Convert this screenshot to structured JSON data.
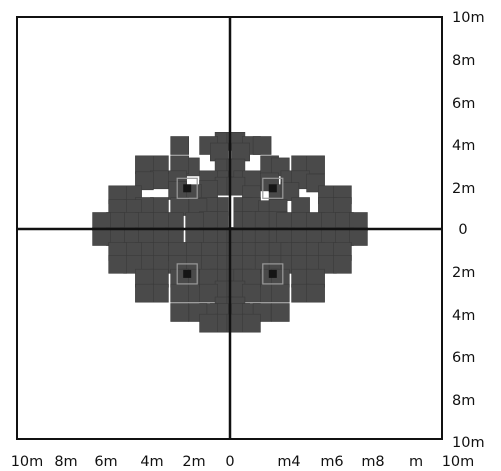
{
  "colors": {
    "background": "#ffffff",
    "frame": "#111111",
    "axis": "#111111",
    "square_fill": "#4a4a4a",
    "square_stroke": "#3a3a3a",
    "marker_fill": "#151515",
    "marker_outline": "#9a9a9a"
  },
  "x_ticks": [
    "10m",
    "8m",
    "6m",
    "4m",
    "2m",
    "0",
    "m4",
    "m6",
    "m8",
    "m",
    "10m"
  ],
  "y_ticks": [
    "10m",
    "8m",
    "6m",
    "4m",
    "2m",
    "0",
    "2m",
    "4m",
    "6m",
    "8m",
    "10m"
  ],
  "squares": [
    [
      -0.55,
      8.2
    ],
    [
      0.55,
      8.2
    ],
    [
      -2.0,
      7.8
    ],
    [
      -4.7,
      7.8
    ],
    [
      2.0,
      7.8
    ],
    [
      3.0,
      7.8
    ],
    [
      -1.0,
      7.2
    ],
    [
      1.0,
      7.2
    ],
    [
      -3.7,
      5.8
    ],
    [
      -4.7,
      6.0
    ],
    [
      3.7,
      6.0
    ],
    [
      4.7,
      5.8
    ],
    [
      -6.6,
      6.0
    ],
    [
      -8.0,
      6.0
    ],
    [
      6.6,
      6.0
    ],
    [
      8.0,
      6.0
    ],
    [
      -0.55,
      5.7
    ],
    [
      0.55,
      5.7
    ],
    [
      -1.0,
      4.6
    ],
    [
      -2.0,
      4.6
    ],
    [
      1.2,
      4.6
    ],
    [
      2.0,
      4.6
    ],
    [
      -4.9,
      4.6
    ],
    [
      -6.6,
      4.6
    ],
    [
      -8.0,
      4.5
    ],
    [
      3.7,
      4.4
    ],
    [
      5.6,
      4.6
    ],
    [
      6.6,
      4.6
    ],
    [
      8.0,
      4.3
    ],
    [
      -0.55,
      4.0
    ],
    [
      0.55,
      4.0
    ],
    [
      -2.0,
      3.7
    ],
    [
      -3.5,
      3.3
    ],
    [
      -4.9,
      3.6
    ],
    [
      -9.1,
      3.2
    ],
    [
      -10.5,
      3.2
    ],
    [
      2.0,
      3.2
    ],
    [
      4.5,
      3.3
    ],
    [
      5.6,
      3.5
    ],
    [
      9.1,
      3.2
    ],
    [
      10.5,
      3.2
    ],
    [
      -1.0,
      2.1
    ],
    [
      -2.0,
      2.1
    ],
    [
      -3.0,
      2.0
    ],
    [
      -4.7,
      2.1
    ],
    [
      -6.6,
      2.1
    ],
    [
      -8.0,
      2.1
    ],
    [
      1.2,
      2.1
    ],
    [
      2.0,
      2.1
    ],
    [
      3.5,
      1.8
    ],
    [
      4.5,
      1.9
    ],
    [
      6.6,
      2.1
    ],
    [
      9.1,
      2.1
    ],
    [
      10.5,
      2.1
    ],
    [
      -9.1,
      1.9
    ],
    [
      -10.5,
      1.9
    ],
    [
      -1.0,
      0.8
    ],
    [
      -2.0,
      0.8
    ],
    [
      -3.3,
      0.7
    ],
    [
      -5.2,
      0.7
    ],
    [
      -6.6,
      0.7
    ],
    [
      -8.0,
      0.7
    ],
    [
      -9.4,
      0.7
    ],
    [
      -10.7,
      0.7
    ],
    [
      -12.0,
      0.7
    ],
    [
      1.2,
      0.8
    ],
    [
      2.0,
      0.8
    ],
    [
      3.2,
      0.8
    ],
    [
      4.5,
      0.8
    ],
    [
      5.2,
      0.7
    ],
    [
      6.6,
      0.7
    ],
    [
      8.0,
      0.7
    ],
    [
      9.4,
      0.7
    ],
    [
      10.7,
      0.7
    ],
    [
      12.0,
      0.7
    ],
    [
      -0.55,
      -0.7
    ],
    [
      0.55,
      -0.7
    ],
    [
      -2.0,
      -0.7
    ],
    [
      -3.3,
      -0.7
    ],
    [
      -5.2,
      -0.7
    ],
    [
      -6.6,
      -0.7
    ],
    [
      -8.0,
      -0.7
    ],
    [
      -9.4,
      -0.7
    ],
    [
      -10.7,
      -0.7
    ],
    [
      -12.0,
      -0.7
    ],
    [
      2.0,
      -0.7
    ],
    [
      3.2,
      -0.7
    ],
    [
      4.5,
      -0.7
    ],
    [
      5.2,
      -0.7
    ],
    [
      6.6,
      -0.7
    ],
    [
      8.0,
      -0.7
    ],
    [
      9.4,
      -0.7
    ],
    [
      10.7,
      -0.7
    ],
    [
      12.0,
      -0.7
    ],
    [
      -0.55,
      -2.1
    ],
    [
      0.55,
      -2.1
    ],
    [
      -2.0,
      -2.1
    ],
    [
      -3.5,
      -2.1
    ],
    [
      -4.9,
      -2.1
    ],
    [
      -6.6,
      -2.1
    ],
    [
      -8.0,
      -2.1
    ],
    [
      -9.1,
      -2.1
    ],
    [
      -10.5,
      -2.1
    ],
    [
      2.0,
      -2.1
    ],
    [
      3.2,
      -2.1
    ],
    [
      4.5,
      -2.1
    ],
    [
      5.6,
      -2.1
    ],
    [
      6.6,
      -2.1
    ],
    [
      8.0,
      -2.1
    ],
    [
      9.1,
      -2.1
    ],
    [
      10.5,
      -2.1
    ],
    [
      -0.55,
      -3.3
    ],
    [
      0.55,
      -3.3
    ],
    [
      -2.0,
      -3.3
    ],
    [
      -3.5,
      -3.3
    ],
    [
      -4.9,
      -3.3
    ],
    [
      -6.6,
      -3.3
    ],
    [
      -8.0,
      -3.3
    ],
    [
      -9.1,
      -3.3
    ],
    [
      -10.5,
      -3.3
    ],
    [
      2.0,
      -3.3
    ],
    [
      3.2,
      -3.3
    ],
    [
      4.5,
      -3.3
    ],
    [
      5.6,
      -3.3
    ],
    [
      6.6,
      -3.3
    ],
    [
      8.0,
      -3.3
    ],
    [
      9.1,
      -3.3
    ],
    [
      10.5,
      -3.3
    ],
    [
      -1.0,
      -4.6
    ],
    [
      -2.0,
      -4.6
    ],
    [
      -3.7,
      -4.6
    ],
    [
      -4.7,
      -4.6
    ],
    [
      -6.6,
      -4.6
    ],
    [
      -8.0,
      -4.6
    ],
    [
      0.55,
      -4.6
    ],
    [
      1.2,
      -4.6
    ],
    [
      2.0,
      -4.6
    ],
    [
      3.7,
      -4.6
    ],
    [
      4.7,
      -4.6
    ],
    [
      6.6,
      -4.6
    ],
    [
      8.0,
      -4.6
    ],
    [
      -0.55,
      -5.7
    ],
    [
      0.55,
      -5.7
    ],
    [
      -2.0,
      -6.0
    ],
    [
      -3.7,
      -6.0
    ],
    [
      -4.7,
      -6.0
    ],
    [
      -6.6,
      -6.0
    ],
    [
      -8.0,
      -6.0
    ],
    [
      2.0,
      -6.0
    ],
    [
      3.7,
      -6.0
    ],
    [
      4.7,
      -6.0
    ],
    [
      6.6,
      -6.0
    ],
    [
      8.0,
      -6.0
    ],
    [
      -0.55,
      -7.2
    ],
    [
      0.55,
      -7.2
    ],
    [
      -1.0,
      -7.8
    ],
    [
      -2.0,
      -7.8
    ],
    [
      -3.0,
      -7.8
    ],
    [
      -4.7,
      -7.8
    ],
    [
      1.0,
      -7.8
    ],
    [
      2.0,
      -7.8
    ],
    [
      3.0,
      -7.8
    ],
    [
      4.7,
      -7.8
    ],
    [
      -0.55,
      -8.8
    ],
    [
      0.55,
      -8.8
    ],
    [
      -2.0,
      -8.8
    ],
    [
      2.0,
      -8.8
    ]
  ],
  "markers": [
    [
      -4.0,
      3.8
    ],
    [
      4.0,
      3.8
    ],
    [
      -4.0,
      -4.2
    ],
    [
      4.0,
      -4.2
    ]
  ]
}
